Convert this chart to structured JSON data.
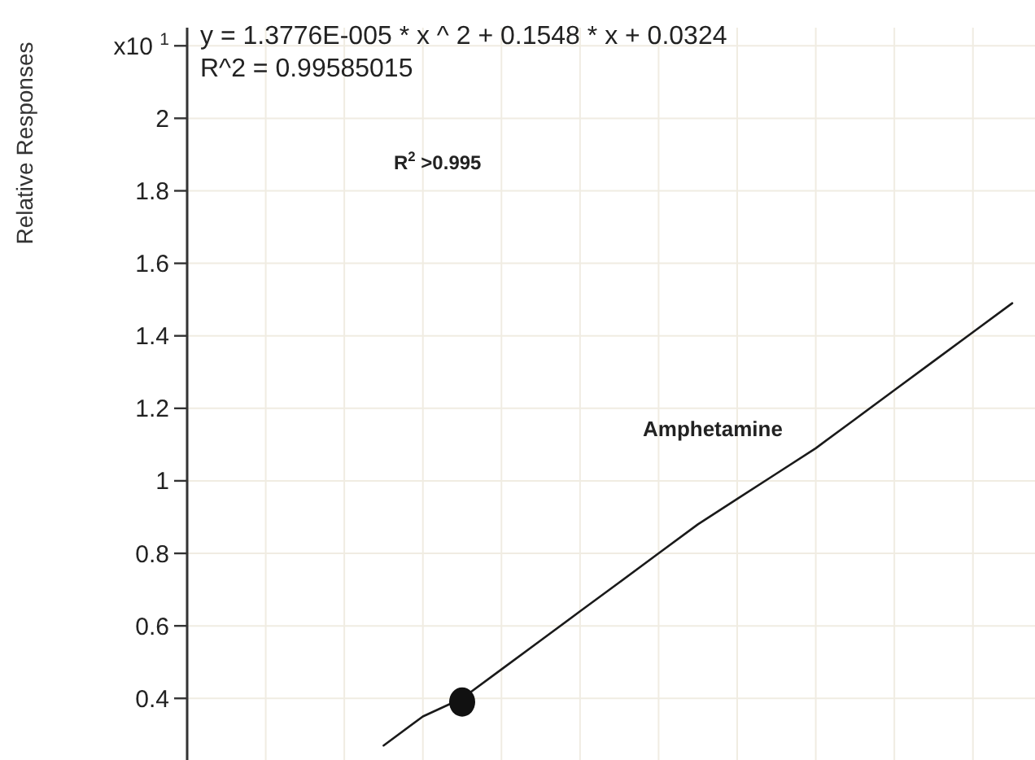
{
  "chart_data": {
    "type": "line",
    "ylabel": "Relative Responses",
    "categories": [
      null,
      null,
      null,
      null,
      null,
      null,
      null,
      null,
      null,
      null,
      null,
      null,
      null,
      null,
      null,
      null,
      null,
      null,
      null,
      null,
      null,
      null
    ],
    "series": [
      {
        "color": "#1a1a1a",
        "values": [
          null,
          null,
          null,
          null,
          null,
          0.27,
          0.35,
          0.4,
          0.48,
          0.56,
          0.64,
          0.72,
          0.8,
          0.88,
          0.95,
          1.02,
          1.09,
          1.17,
          1.25,
          1.33,
          1.41,
          1.49
        ]
      },
      {
        "type": "scatter",
        "color": "#111111",
        "values": [
          null,
          null,
          null,
          null,
          null,
          null,
          null,
          0.39,
          null,
          null,
          null,
          null,
          null,
          null,
          null,
          null,
          null,
          null,
          null,
          null,
          null,
          null
        ]
      }
    ],
    "ylim": [
      0.23,
      2.25
    ],
    "yticks": [
      0.4,
      0.6,
      0.8,
      1,
      1.2,
      1.4,
      1.6,
      1.8,
      2,
      {
        "value": 2.2,
        "label": "x10 $^{1}$"
      }
    ],
    "grid": true,
    "annotations": [
      "y = 1.3776E-005 * x ^ 2  + 0.1548 * x  + 0.0324",
      "R^2 = 0.99585015",
      "R$^{2}$ >0.995",
      "Amphetamine"
    ]
  }
}
